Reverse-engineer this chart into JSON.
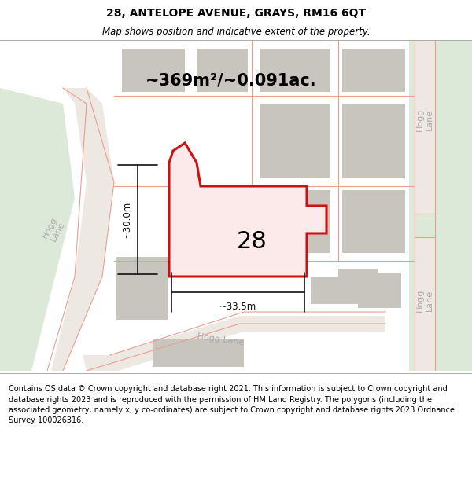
{
  "title": "28, ANTELOPE AVENUE, GRAYS, RM16 6QT",
  "subtitle": "Map shows position and indicative extent of the property.",
  "area_text": "~369m²/~0.091ac.",
  "number_label": "28",
  "dim_h_label": "~30.0m",
  "dim_w_label": "~33.5m",
  "footer": "Contains OS data © Crown copyright and database right 2021. This information is subject to Crown copyright and database rights 2023 and is reproduced with the permission of HM Land Registry. The polygons (including the associated geometry, namely x, y co-ordinates) are subject to Crown copyright and database rights 2023 Ordnance Survey 100026316.",
  "map_bg": "#f7f5f0",
  "building_color": "#c8c4be",
  "road_line_color": "#e8a090",
  "road_fill_color": "#ede9e2",
  "green_color": "#dce8d8",
  "highlight_edge": "#cc1111",
  "highlight_fill": "#fceaea",
  "dim_color": "#111111",
  "label_color": "#aaaaaa",
  "title_fontsize": 10,
  "subtitle_fontsize": 8.5,
  "area_fontsize": 15,
  "num_fontsize": 22,
  "dim_fontsize": 8.5,
  "road_label_fontsize": 8
}
